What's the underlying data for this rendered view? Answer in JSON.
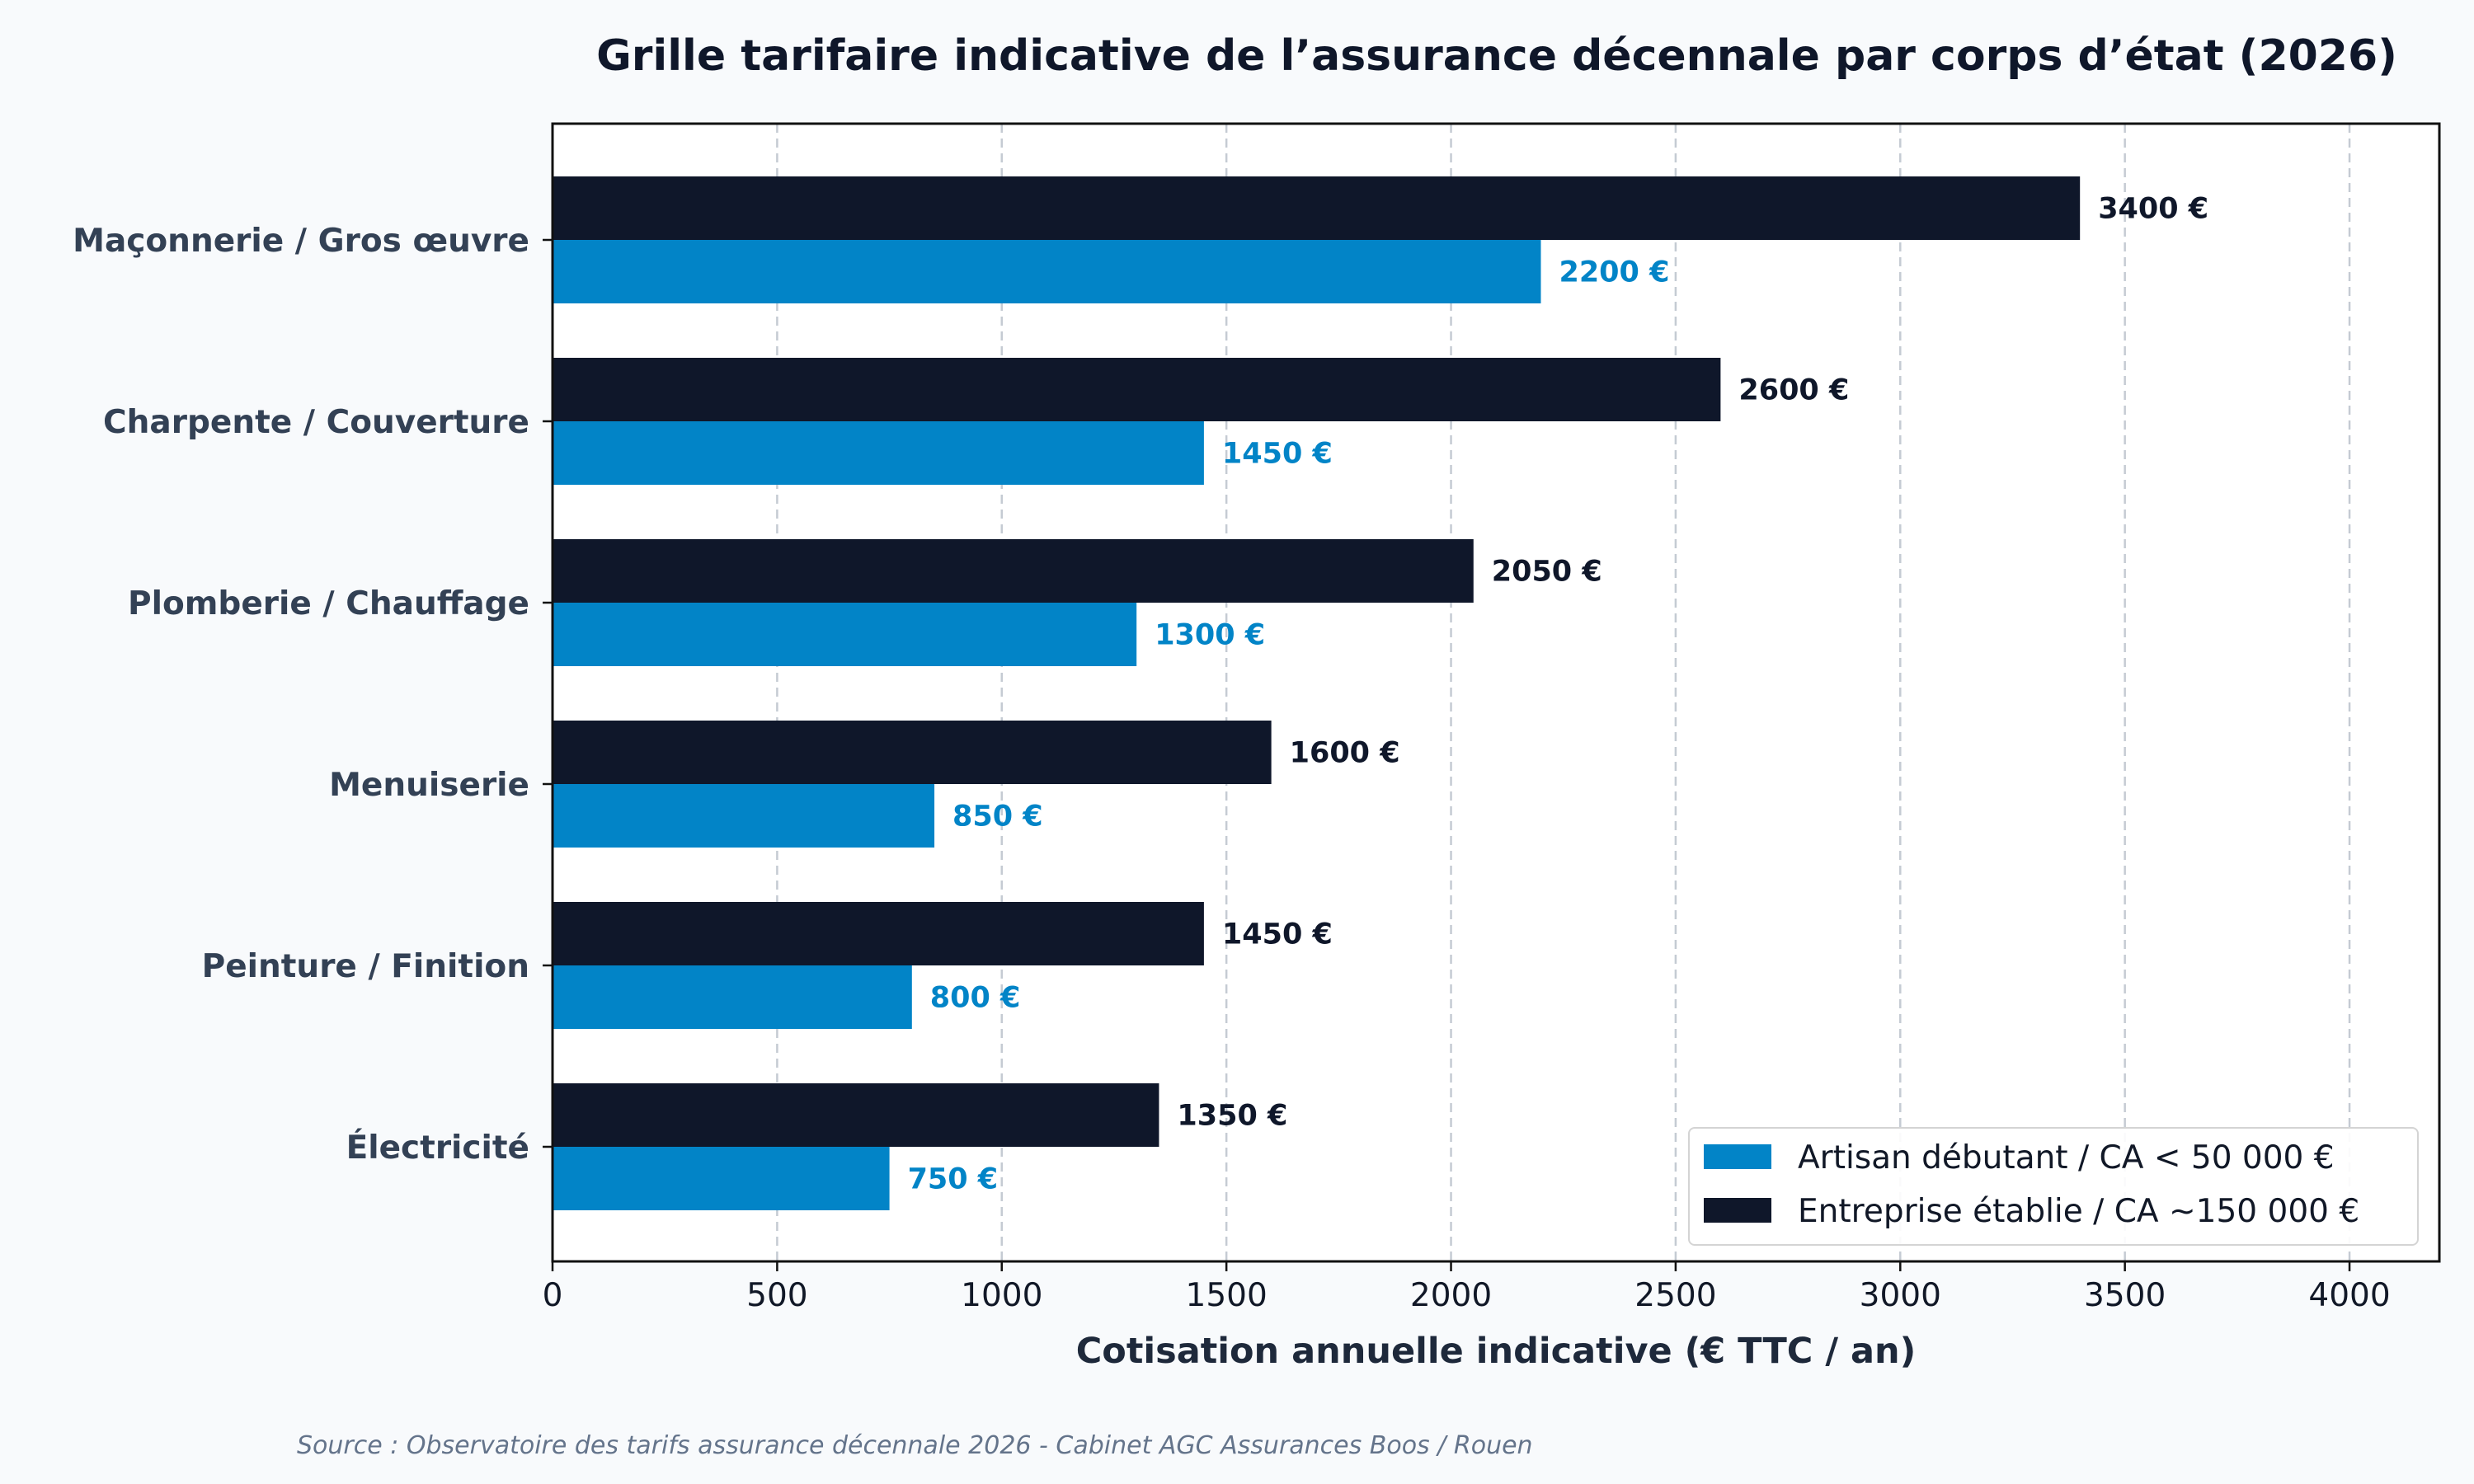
{
  "chart_data": {
    "type": "bar",
    "orientation": "horizontal",
    "title": "Grille tarifaire indicative de l’assurance décennale par corps d’état (2026)",
    "xlabel": "Cotisation annuelle indicative (€ TTC / an)",
    "ylabel": "",
    "xlim": [
      0,
      4200
    ],
    "xticks": [
      0,
      500,
      1000,
      1500,
      2000,
      2500,
      3000,
      3500,
      4000
    ],
    "grid": "x-dashed",
    "legend_position": "bottom-right",
    "value_suffix": " €",
    "categories": [
      "Maçonnerie / Gros œuvre",
      "Charpente / Couverture",
      "Plomberie / Chauffage",
      "Menuiserie",
      "Peinture / Finition",
      "Électricité"
    ],
    "series": [
      {
        "name": "Artisan débutant / CA < 50 000 €",
        "color": "#0284c7",
        "values": [
          2200,
          1450,
          1300,
          850,
          800,
          750
        ]
      },
      {
        "name": "Entreprise établie / CA ~150 000 €",
        "color": "#0f172a",
        "values": [
          3400,
          2600,
          2050,
          1600,
          1450,
          1350
        ]
      }
    ],
    "source": "Source : Observatoire des tarifs assurance décennale 2026 - Cabinet AGC Assurances Boos / Rouen"
  }
}
